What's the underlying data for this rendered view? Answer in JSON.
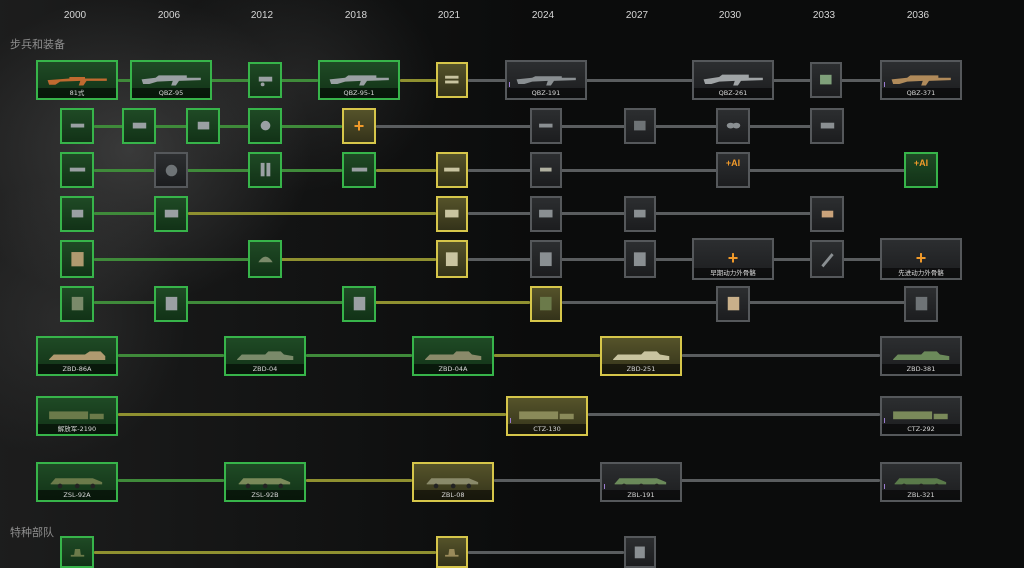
{
  "timeline": {
    "years": [
      "2000",
      "2006",
      "2012",
      "2018",
      "2021",
      "2024",
      "2027",
      "2030",
      "2033",
      "2036"
    ]
  },
  "sections": {
    "infantry": "步兵和装备",
    "special": "特种部队"
  },
  "tiles": {
    "r1": [
      "81式",
      "QBZ-95",
      "",
      "QBZ-95-1",
      "",
      "QBZ-191",
      "",
      "QBZ-261",
      "",
      "QBZ-371"
    ],
    "r5_c1": "早期动力外骨骼",
    "r5_c2": "先进动力外骨骼",
    "r7": [
      "ZBD-86A",
      "ZBD-04",
      "ZBD-04A",
      "ZBD-251",
      "ZBD-381"
    ],
    "r8": [
      "解放军-2190",
      "CTZ-130",
      "CTZ-292"
    ],
    "r9": [
      "ZSL-92A",
      "ZSL-92B",
      "ZBL-08",
      "ZBL-191",
      "ZBL-321"
    ]
  },
  "badges": {
    "ai": "+AI",
    "plus": "+"
  },
  "colors": {
    "green": "#37b44a",
    "yellow": "#d6c64a",
    "gray": "#55585b"
  }
}
